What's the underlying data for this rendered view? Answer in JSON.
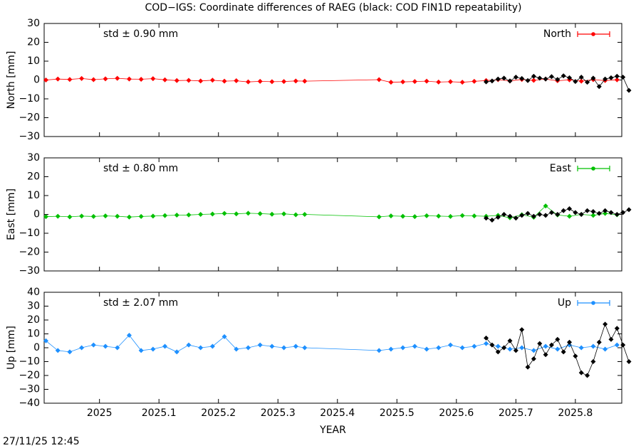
{
  "title": "COD−IGS: Coordinate differences of RAEG (black: COD FIN1D repeatability)",
  "footer": "27/11/25 12:45",
  "chart_data": [
    {
      "type": "line",
      "ylabel": "North [mm]",
      "annotation": "std ± 0.90 mm",
      "annotation_color": "#ff0000",
      "ylim": [
        -30,
        30
      ],
      "yticks": [
        {
          "value": -30,
          "label": "−30"
        },
        {
          "value": -20,
          "label": "−20"
        },
        {
          "value": -10,
          "label": "−10"
        },
        0,
        10,
        20,
        30
      ],
      "series": [
        {
          "name": "North",
          "color": "#ff0000",
          "x": [
            2024.91,
            2024.93,
            2024.95,
            2024.97,
            2024.99,
            2025.01,
            2025.03,
            2025.05,
            2025.07,
            2025.09,
            2025.11,
            2025.13,
            2025.15,
            2025.17,
            2025.19,
            2025.21,
            2025.23,
            2025.25,
            2025.27,
            2025.29,
            2025.31,
            2025.33,
            2025.345,
            2025.47,
            2025.49,
            2025.51,
            2025.53,
            2025.55,
            2025.57,
            2025.59,
            2025.61,
            2025.63,
            2025.65,
            2025.67,
            2025.69,
            2025.71,
            2025.73,
            2025.75,
            2025.77,
            2025.79,
            2025.81,
            2025.83,
            2025.85,
            2025.87
          ],
          "values": [
            0,
            0.5,
            0.3,
            0.8,
            0.2,
            0.6,
            0.9,
            0.5,
            0.4,
            0.7,
            0.1,
            -0.3,
            -0.2,
            -0.5,
            -0.1,
            -0.6,
            -0.4,
            -1,
            -0.7,
            -0.9,
            -0.8,
            -0.5,
            -0.6,
            0.2,
            -1.2,
            -1,
            -0.8,
            -0.6,
            -1.1,
            -0.9,
            -1.2,
            -0.7,
            -0.3,
            0.2,
            -0.5,
            0.3,
            -0.2,
            0.5,
            -0.4,
            0.1,
            -0.6,
            0.2,
            -0.3,
            0.1
          ]
        },
        {
          "color": "#000000",
          "x": [
            2025.65,
            2025.66,
            2025.67,
            2025.68,
            2025.69,
            2025.7,
            2025.71,
            2025.72,
            2025.73,
            2025.74,
            2025.75,
            2025.76,
            2025.77,
            2025.78,
            2025.79,
            2025.8,
            2025.81,
            2025.82,
            2025.83,
            2025.84,
            2025.85,
            2025.86,
            2025.87,
            2025.88,
            2025.89
          ],
          "values": [
            -1,
            -0.5,
            0.5,
            1,
            -0.5,
            1.5,
            0.8,
            -0.3,
            2,
            1,
            0.5,
            1.8,
            0.3,
            2.2,
            1.2,
            -0.8,
            1.5,
            -1.2,
            1,
            -3.5,
            0.5,
            1.2,
            2,
            1.5,
            -5.5
          ]
        }
      ]
    },
    {
      "type": "line",
      "ylabel": "East [mm]",
      "annotation": "std ± 0.80 mm",
      "annotation_color": "#00c000",
      "ylim": [
        -30,
        30
      ],
      "yticks": [
        {
          "value": -30,
          "label": "−30"
        },
        {
          "value": -20,
          "label": "−20"
        },
        {
          "value": -10,
          "label": "−10"
        },
        0,
        10,
        20,
        30
      ],
      "series": [
        {
          "name": "East",
          "color": "#00c000",
          "x": [
            2024.91,
            2024.93,
            2024.95,
            2024.97,
            2024.99,
            2025.01,
            2025.03,
            2025.05,
            2025.07,
            2025.09,
            2025.11,
            2025.13,
            2025.15,
            2025.17,
            2025.19,
            2025.21,
            2025.23,
            2025.25,
            2025.27,
            2025.29,
            2025.31,
            2025.33,
            2025.345,
            2025.47,
            2025.49,
            2025.51,
            2025.53,
            2025.55,
            2025.57,
            2025.59,
            2025.61,
            2025.63,
            2025.65,
            2025.67,
            2025.69,
            2025.71,
            2025.73,
            2025.75,
            2025.77,
            2025.79,
            2025.81,
            2025.83,
            2025.85,
            2025.87
          ],
          "values": [
            -1.2,
            -1,
            -1.3,
            -0.9,
            -1.1,
            -0.8,
            -1,
            -1.4,
            -1.1,
            -0.9,
            -0.6,
            -0.4,
            -0.3,
            0,
            0.2,
            0.5,
            0.3,
            0.6,
            0.4,
            0.1,
            0.3,
            -0.2,
            0,
            -1.3,
            -0.8,
            -1,
            -1.2,
            -0.7,
            -0.9,
            -1.1,
            -0.6,
            -0.8,
            -1,
            -0.5,
            -1.8,
            -0.2,
            -1.5,
            4.5,
            -0.3,
            -1,
            0,
            -0.5,
            0.5,
            -0.2
          ]
        },
        {
          "color": "#000000",
          "x": [
            2025.65,
            2025.66,
            2025.67,
            2025.68,
            2025.69,
            2025.7,
            2025.71,
            2025.72,
            2025.73,
            2025.74,
            2025.75,
            2025.76,
            2025.77,
            2025.78,
            2025.79,
            2025.8,
            2025.81,
            2025.82,
            2025.83,
            2025.84,
            2025.85,
            2025.86,
            2025.87,
            2025.88,
            2025.89
          ],
          "values": [
            -2,
            -3,
            -1.5,
            0,
            -1,
            -2,
            -0.5,
            0.5,
            -1,
            0,
            -0.5,
            1,
            0,
            2,
            3,
            1,
            0,
            2,
            1.5,
            0.5,
            2,
            1,
            0,
            1,
            2.5
          ]
        }
      ]
    },
    {
      "type": "line",
      "ylabel": "Up [mm]",
      "annotation": "std ± 2.07 mm",
      "annotation_color": "#1e90ff",
      "ylim": [
        -40,
        40
      ],
      "yticks": [
        {
          "value": -40,
          "label": "−40"
        },
        {
          "value": -30,
          "label": "−30"
        },
        {
          "value": -20,
          "label": "−20"
        },
        {
          "value": -10,
          "label": "−10"
        },
        0,
        10,
        20,
        30,
        40
      ],
      "xlabel": "YEAR",
      "xlim": [
        2024.907,
        2025.878
      ],
      "xticks": [
        2025,
        2025.1,
        2025.2,
        2025.3,
        2025.4,
        2025.5,
        2025.6,
        2025.7,
        2025.8
      ],
      "series": [
        {
          "name": "Up",
          "color": "#1e90ff",
          "x": [
            2024.91,
            2024.93,
            2024.95,
            2024.97,
            2024.99,
            2025.01,
            2025.03,
            2025.05,
            2025.07,
            2025.09,
            2025.11,
            2025.13,
            2025.15,
            2025.17,
            2025.19,
            2025.21,
            2025.23,
            2025.25,
            2025.27,
            2025.29,
            2025.31,
            2025.33,
            2025.345,
            2025.47,
            2025.49,
            2025.51,
            2025.53,
            2025.55,
            2025.57,
            2025.59,
            2025.61,
            2025.63,
            2025.65,
            2025.67,
            2025.69,
            2025.71,
            2025.73,
            2025.75,
            2025.77,
            2025.79,
            2025.81,
            2025.83,
            2025.85,
            2025.87
          ],
          "values": [
            5,
            -2,
            -3,
            0,
            2,
            1,
            0,
            9,
            -2,
            -1,
            1,
            -3,
            2,
            0,
            1,
            8,
            -1,
            0,
            2,
            1,
            0,
            1,
            0,
            -2,
            -1,
            0,
            1,
            -1,
            0,
            2,
            0,
            1,
            3,
            1,
            -1,
            0,
            -2,
            1,
            -1,
            2,
            0,
            1,
            -1,
            2
          ]
        },
        {
          "color": "#000000",
          "x": [
            2025.65,
            2025.66,
            2025.67,
            2025.68,
            2025.69,
            2025.7,
            2025.71,
            2025.72,
            2025.73,
            2025.74,
            2025.75,
            2025.76,
            2025.77,
            2025.78,
            2025.79,
            2025.8,
            2025.81,
            2025.82,
            2025.83,
            2025.84,
            2025.85,
            2025.86,
            2025.87,
            2025.88,
            2025.89
          ],
          "values": [
            7,
            2,
            -3,
            0,
            5,
            -2,
            13,
            -14,
            -8,
            3,
            -5,
            2,
            6,
            -3,
            4,
            -6,
            -18,
            -20,
            -10,
            4,
            17,
            6,
            14,
            2,
            -10
          ]
        }
      ]
    }
  ]
}
